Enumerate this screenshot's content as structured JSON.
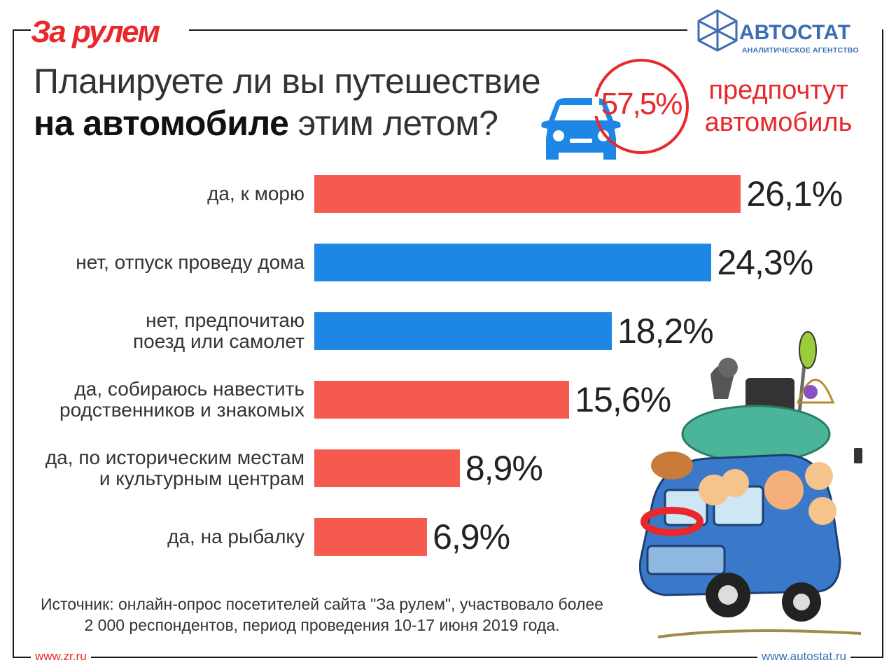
{
  "header": {
    "brand_left": "За рулем",
    "brand_right_name": "АВТОСТАТ",
    "brand_right_sub": "АНАЛИТИЧЕСКОЕ АГЕНТСТВО"
  },
  "title": {
    "line1": "Планируете ли вы путешествие",
    "line2_bold": "на автомобиле",
    "line2_rest": " этим летом?"
  },
  "highlight": {
    "value": "57,5%",
    "caption": "предпочтут автомобиль"
  },
  "chart_data": {
    "type": "bar",
    "orientation": "horizontal",
    "categories": [
      "да, к морю",
      "нет, отпуск проведу дома",
      "нет, предпочитаю\nпоезд или самолет",
      "да, собираюсь навестить\nродственников и знакомых",
      "да, по историческим местам\nи культурным центрам",
      "да, на рыбалку"
    ],
    "values": [
      26.1,
      24.3,
      18.2,
      15.6,
      8.9,
      6.9
    ],
    "value_labels": [
      "26,1%",
      "24,3%",
      "18,2%",
      "15,6%",
      "8,9%",
      "6,9%"
    ],
    "answer_type": [
      "yes",
      "no",
      "no",
      "yes",
      "yes",
      "yes"
    ],
    "colors": {
      "yes": "#f55a4e",
      "no": "#1e87e5"
    },
    "title": "",
    "xlabel": "",
    "ylabel": "",
    "grid": false
  },
  "source": "Источник: онлайн-опрос посетителей сайта \"За рулем\", участвовало более\n2 000 респондентов, период проведения 10-17 июня 2019 года.",
  "footer": {
    "left_link": "www.zr.ru",
    "right_link": "www.autostat.ru"
  },
  "colors": {
    "brand_red": "#e8282b",
    "autostat_blue": "#3b6eb3",
    "car_icon_blue": "#1e87e5"
  },
  "icons": [
    "car-icon",
    "autostat-logo-icon",
    "travel-car-illustration"
  ]
}
